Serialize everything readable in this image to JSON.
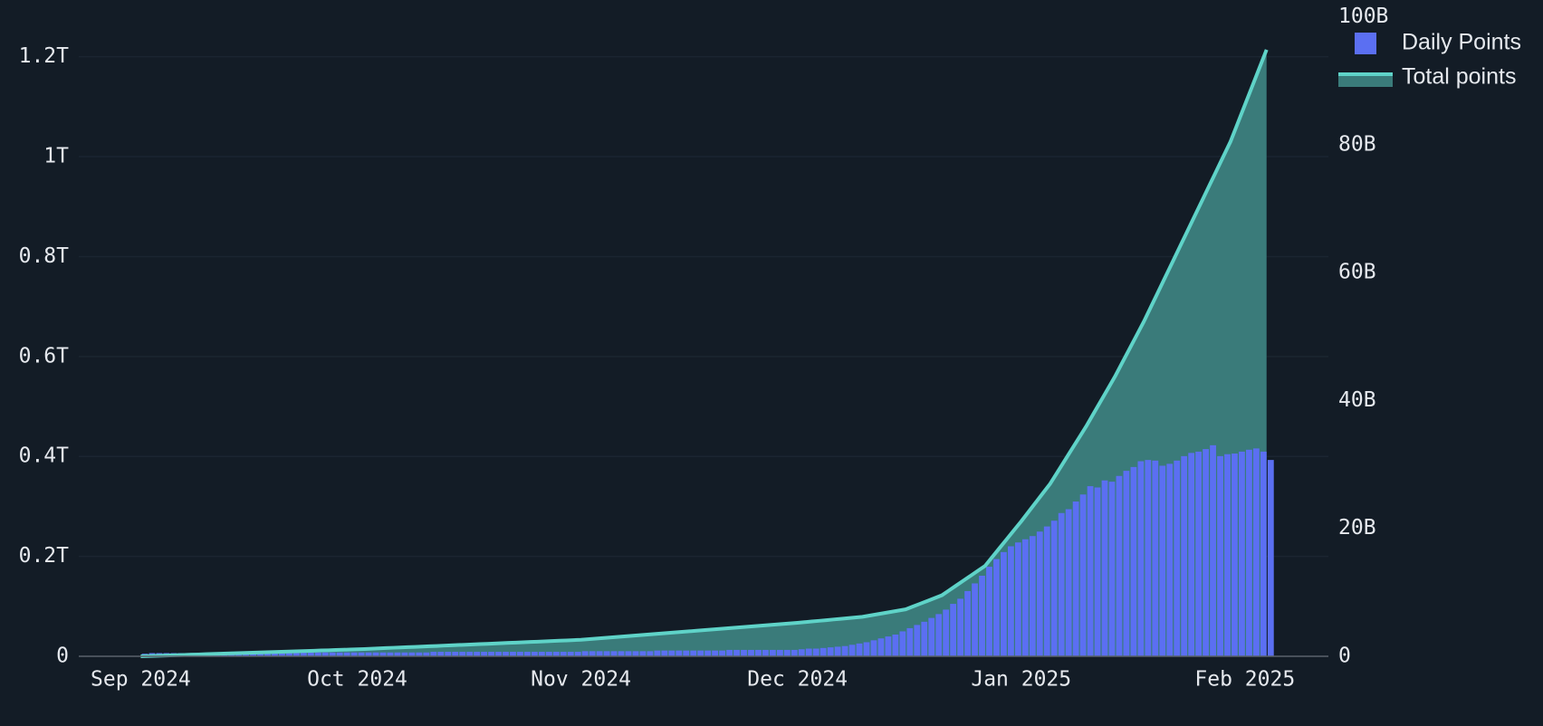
{
  "chart_data": {
    "type": "combo",
    "categories": [
      "Sep 2024",
      null,
      null,
      null,
      null,
      null,
      null,
      null,
      null,
      null,
      null,
      null,
      null,
      null,
      null,
      null,
      null,
      null,
      null,
      null,
      null,
      null,
      null,
      null,
      null,
      null,
      null,
      null,
      null,
      null,
      "Oct 2024",
      null,
      null,
      null,
      null,
      null,
      null,
      null,
      null,
      null,
      null,
      null,
      null,
      null,
      null,
      null,
      null,
      null,
      null,
      null,
      null,
      null,
      null,
      null,
      null,
      null,
      null,
      null,
      null,
      null,
      null,
      "Nov 2024",
      null,
      null,
      null,
      null,
      null,
      null,
      null,
      null,
      null,
      null,
      null,
      null,
      null,
      null,
      null,
      null,
      null,
      null,
      null,
      null,
      null,
      null,
      null,
      null,
      null,
      null,
      null,
      null,
      null,
      "Dec 2024",
      null,
      null,
      null,
      null,
      null,
      null,
      null,
      null,
      null,
      null,
      null,
      null,
      null,
      null,
      null,
      null,
      null,
      null,
      null,
      null,
      null,
      null,
      null,
      null,
      null,
      null,
      null,
      null,
      null,
      null,
      "Jan 2025",
      null,
      null,
      null,
      null,
      null,
      null,
      null,
      null,
      null,
      null,
      null,
      null,
      null,
      null,
      null,
      null,
      null,
      null,
      null,
      null,
      null,
      null,
      null,
      null,
      null,
      null,
      null,
      null,
      null,
      null,
      "Feb 2025",
      null,
      null,
      null
    ],
    "series": [
      {
        "name": "Daily Points",
        "type": "bar",
        "axis": "y2",
        "color": "#5b6ff2",
        "values": [
          0.4,
          0.5,
          0.5,
          0.5,
          0.5,
          0.5,
          0.5,
          0.5,
          0.5,
          0.5,
          0.5,
          0.5,
          0.5,
          0.5,
          0.5,
          0.5,
          0.6,
          0.6,
          0.6,
          0.6,
          0.6,
          0.6,
          0.6,
          0.6,
          0.6,
          0.6,
          0.6,
          0.6,
          0.6,
          0.6,
          0.6,
          0.6,
          0.6,
          0.6,
          0.6,
          0.6,
          0.6,
          0.6,
          0.6,
          0.6,
          0.7,
          0.7,
          0.7,
          0.7,
          0.7,
          0.7,
          0.7,
          0.7,
          0.7,
          0.7,
          0.7,
          0.7,
          0.7,
          0.7,
          0.7,
          0.7,
          0.7,
          0.7,
          0.7,
          0.7,
          0.7,
          0.8,
          0.8,
          0.8,
          0.8,
          0.8,
          0.8,
          0.8,
          0.8,
          0.8,
          0.8,
          0.9,
          0.9,
          0.9,
          0.9,
          0.9,
          0.9,
          0.9,
          0.9,
          0.9,
          0.9,
          1.0,
          1.0,
          1.0,
          1.0,
          1.0,
          1.0,
          1.0,
          1.0,
          1.0,
          1.0,
          1.1,
          1.2,
          1.2,
          1.3,
          1.4,
          1.5,
          1.6,
          1.8,
          2.0,
          2.2,
          2.5,
          2.8,
          3.1,
          3.4,
          3.9,
          4.4,
          4.9,
          5.4,
          6.0,
          6.6,
          7.3,
          8.2,
          9.0,
          10.2,
          11.4,
          12.6,
          14.0,
          15.2,
          16.3,
          17.2,
          17.8,
          18.3,
          18.8,
          19.5,
          20.3,
          21.2,
          22.4,
          23.0,
          24.2,
          25.3,
          26.6,
          26.4,
          27.5,
          27.3,
          28.2,
          29.0,
          29.6,
          30.5,
          30.7,
          30.6,
          29.8,
          30.1,
          30.6,
          31.3,
          31.8,
          32.0,
          32.4,
          33.0,
          31.3,
          31.6,
          31.7,
          32.0,
          32.3,
          32.5,
          32.0,
          30.7
        ]
      },
      {
        "name": "Total points",
        "type": "line",
        "color": "#5fd3c8",
        "fill": "#3a7b7a",
        "values": [
          0.0,
          0.0005,
          0.0009,
          0.0014,
          0.0019,
          0.0023,
          0.0028,
          0.0033,
          0.0037,
          0.0042,
          0.0047,
          0.0051,
          0.0056,
          0.0061,
          0.0065,
          0.007,
          0.0075,
          0.0079,
          0.0084,
          0.0089,
          0.0093,
          0.0098,
          0.0103,
          0.0107,
          0.0112,
          0.0117,
          0.0121,
          0.0126,
          0.0131,
          0.0135,
          0.014,
          0.0146,
          0.0152,
          0.0158,
          0.0165,
          0.0171,
          0.0177,
          0.0183,
          0.0189,
          0.0195,
          0.0201,
          0.0207,
          0.0214,
          0.022,
          0.0226,
          0.0232,
          0.0238,
          0.0244,
          0.025,
          0.0256,
          0.0263,
          0.0269,
          0.0275,
          0.0281,
          0.0287,
          0.0293,
          0.0299,
          0.0305,
          0.0312,
          0.0318,
          0.0324,
          0.033,
          0.0341,
          0.0353,
          0.0364,
          0.0375,
          0.0387,
          0.0398,
          0.0409,
          0.0421,
          0.0432,
          0.0443,
          0.0455,
          0.0466,
          0.0477,
          0.0489,
          0.05,
          0.0511,
          0.0523,
          0.0534,
          0.0545,
          0.0557,
          0.0568,
          0.0579,
          0.0591,
          0.0602,
          0.0613,
          0.0625,
          0.0636,
          0.0647,
          0.0659,
          0.067,
          0.0683,
          0.0697,
          0.071,
          0.0723,
          0.0737,
          0.075,
          0.0763,
          0.0777,
          0.079,
          0.0815,
          0.084,
          0.0865,
          0.089,
          0.0915,
          0.094,
          0.0996,
          0.1052,
          0.1108,
          0.1164,
          0.122,
          0.1318,
          0.1417,
          0.1515,
          0.1613,
          0.1712,
          0.181,
          0.1988,
          0.2166,
          0.2344,
          0.2522,
          0.27,
          0.2888,
          0.3075,
          0.3263,
          0.345,
          0.368,
          0.391,
          0.414,
          0.437,
          0.46,
          0.485,
          0.51,
          0.535,
          0.56,
          0.5875,
          0.615,
          0.6425,
          0.67,
          0.7,
          0.73,
          0.76,
          0.79,
          0.82,
          0.85,
          0.88,
          0.91,
          0.94,
          0.97,
          1.0,
          1.03,
          1.0668,
          1.1036,
          1.1404,
          1.1772,
          1.214
        ]
      }
    ],
    "ylim": [
      0,
      1.28
    ],
    "yticks": [
      0,
      {
        "value": 0.2,
        "label": "0.2T"
      },
      {
        "value": 0.4,
        "label": "0.4T"
      },
      {
        "value": 0.6,
        "label": "0.6T"
      },
      {
        "value": 0.8,
        "label": "0.8T"
      },
      {
        "value": 1,
        "label": "1T"
      },
      {
        "value": 1.2,
        "label": "1.2T"
      }
    ],
    "y2lim": [
      0,
      100
    ],
    "y2ticks": [
      0,
      {
        "value": 20,
        "label": "20B"
      },
      {
        "value": 40,
        "label": "40B"
      },
      {
        "value": 60,
        "label": "60B"
      },
      {
        "value": 80,
        "label": "80B"
      },
      {
        "value": 100,
        "label": "100B"
      }
    ],
    "grid": true,
    "legend": "top-right"
  }
}
